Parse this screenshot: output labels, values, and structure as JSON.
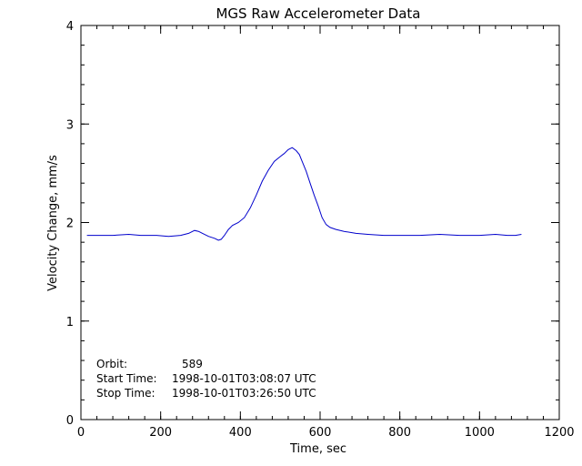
{
  "chart_data": {
    "type": "line",
    "title": "MGS Raw Accelerometer Data",
    "xlabel": "Time, sec",
    "ylabel": "Velocity Change, mm/s",
    "xlim": [
      0,
      1200
    ],
    "ylim": [
      0,
      4
    ],
    "xticks": [
      "0",
      "200",
      "400",
      "600",
      "800",
      "1000",
      "1200"
    ],
    "yticks": [
      "0",
      "1",
      "2",
      "3",
      "4"
    ],
    "grid": false,
    "line_color": "#0000cc",
    "annotations": {
      "orbit_label": "Orbit:",
      "orbit_value": "589",
      "start_label": "Start Time:",
      "start_value": "1998-10-01T03:08:07 UTC",
      "stop_label": "Stop Time:",
      "stop_value": "1998-10-01T03:26:50 UTC"
    },
    "series": [
      {
        "x": [
          15,
          40,
          80,
          120,
          150,
          190,
          220,
          250,
          270,
          285,
          295,
          305,
          320,
          335,
          345,
          352,
          360,
          370,
          380,
          395,
          410,
          425,
          440,
          455,
          470,
          485,
          500,
          510,
          520,
          530,
          540,
          548,
          555,
          565,
          575,
          585,
          595,
          605,
          615,
          625,
          640,
          660,
          690,
          720,
          760,
          800,
          850,
          900,
          950,
          1000,
          1040,
          1070,
          1090,
          1105
        ],
        "y": [
          1.87,
          1.87,
          1.87,
          1.88,
          1.87,
          1.87,
          1.86,
          1.87,
          1.89,
          1.92,
          1.91,
          1.89,
          1.86,
          1.84,
          1.82,
          1.83,
          1.87,
          1.93,
          1.97,
          2.0,
          2.05,
          2.15,
          2.28,
          2.42,
          2.53,
          2.62,
          2.67,
          2.7,
          2.74,
          2.76,
          2.73,
          2.69,
          2.62,
          2.52,
          2.4,
          2.28,
          2.17,
          2.05,
          1.98,
          1.95,
          1.93,
          1.91,
          1.89,
          1.88,
          1.87,
          1.87,
          1.87,
          1.88,
          1.87,
          1.87,
          1.88,
          1.87,
          1.87,
          1.88
        ]
      }
    ]
  }
}
